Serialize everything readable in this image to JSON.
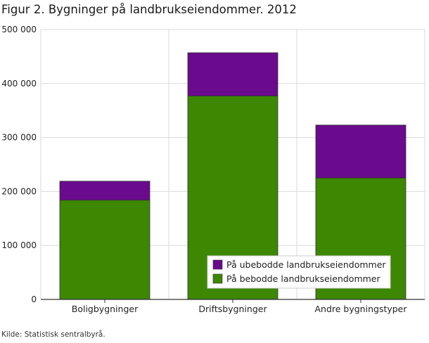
{
  "title": "Figur 2. Bygninger på landbrukseiendommer. 2012",
  "source": "Kilde: Statistisk sentralbyrå.",
  "colors": {
    "ubebodde": "#6a0a8c",
    "bebodde": "#3d8703",
    "grid": "#d9d9d9",
    "axis": "#333333"
  },
  "chart_data": {
    "type": "bar",
    "stacked": true,
    "title": "Figur 2. Bygninger på landbrukseiendommer. 2012",
    "xlabel": "",
    "ylabel": "",
    "categories": [
      "Boligbygninger",
      "Driftsbygninger",
      "Andre bygningstyper"
    ],
    "ylim": [
      0,
      500000
    ],
    "yticks": [
      0,
      100000,
      200000,
      300000,
      400000,
      500000
    ],
    "ytick_labels": [
      "0",
      "100 000",
      "200 000",
      "300 000",
      "400 000",
      "500 000"
    ],
    "grid": true,
    "legend_position": "bottom-right",
    "series": [
      {
        "name": "På bebodde landbrukseiendommer",
        "values": [
          184000,
          377000,
          225000
        ],
        "color": "#3d8703"
      },
      {
        "name": "På ubebodde landbrukseiendommer",
        "values": [
          35000,
          80000,
          98000
        ],
        "color": "#6a0a8c"
      }
    ],
    "legend_order": [
      1,
      0
    ]
  }
}
